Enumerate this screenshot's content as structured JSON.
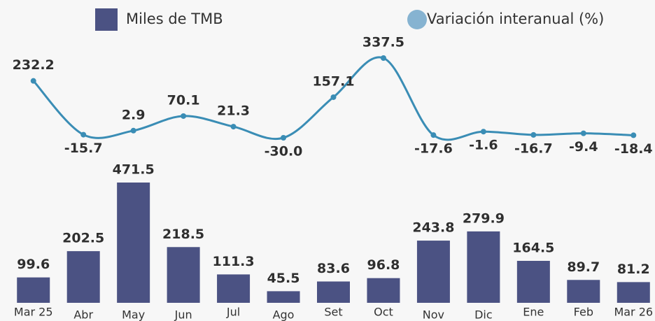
{
  "chart_data": {
    "type": "bar",
    "categories": [
      "Mar 25",
      "Abr",
      "May",
      "Jun",
      "Jul",
      "Ago",
      "Set",
      "Oct",
      "Nov",
      "Dic",
      "Ene",
      "Feb",
      "Mar 26"
    ],
    "series": [
      {
        "name": "Miles de TMB",
        "type": "bar",
        "color": "#4b5283",
        "values": [
          99.6,
          202.5,
          471.5,
          218.5,
          111.3,
          45.5,
          83.6,
          96.8,
          243.8,
          279.9,
          164.5,
          89.7,
          81.2
        ]
      },
      {
        "name": "Variación interanual (%)",
        "type": "line",
        "color": "#3a8db5",
        "legend_color": "#86b3d1",
        "values": [
          232.2,
          -15.7,
          2.9,
          70.1,
          21.3,
          -30,
          157.1,
          337.5,
          -17.6,
          -1.6,
          -16.7,
          -9.4,
          -18.4
        ],
        "value_labels": [
          "232.2",
          "-15.7",
          "2.9",
          "70.1",
          "21.3",
          "-30.0",
          "157.1",
          "337.5",
          "-17.6",
          "-1.6",
          "-16.7",
          "-9.4",
          "-18.4"
        ]
      }
    ]
  }
}
